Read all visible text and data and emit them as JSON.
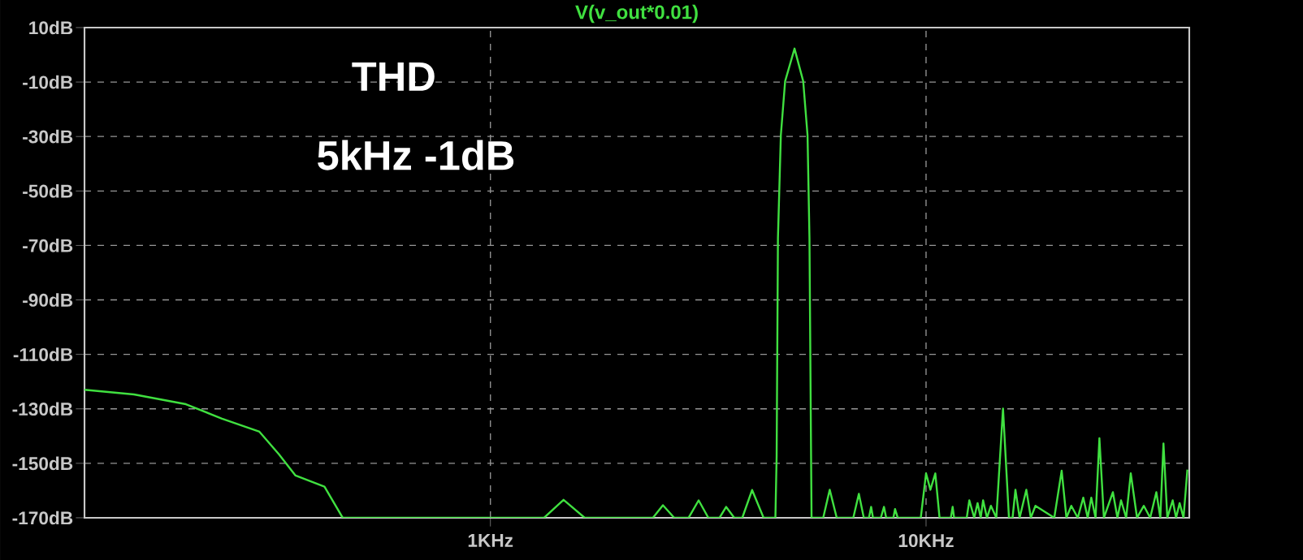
{
  "chart_data": {
    "type": "line",
    "title": "THD",
    "subtitle": "5kHz -1dB",
    "log": "x",
    "grid": true,
    "legend": "top",
    "xlim": [
      0.117,
      40.2
    ],
    "ylim": [
      -170,
      10
    ],
    "xticks": [
      {
        "value": 1,
        "label": "1KHz"
      },
      {
        "value": 10,
        "label": "10KHz"
      }
    ],
    "yticks": [
      {
        "value": 10,
        "label": "10dB"
      },
      {
        "value": -10,
        "label": "-10dB"
      },
      {
        "value": -30,
        "label": "-30dB"
      },
      {
        "value": -50,
        "label": "-50dB"
      },
      {
        "value": -70,
        "label": "-70dB"
      },
      {
        "value": -90,
        "label": "-90dB"
      },
      {
        "value": -110,
        "label": "-110dB"
      },
      {
        "value": -130,
        "label": "-130dB"
      },
      {
        "value": -150,
        "label": "-150dB"
      },
      {
        "value": -170,
        "label": "-170dB"
      }
    ],
    "series": [
      {
        "name": "V(v_out*0.01)",
        "color": "#40e040",
        "x": [
          0.117,
          0.152,
          0.2,
          0.242,
          0.295,
          0.327,
          0.357,
          0.416,
          0.458,
          1.328,
          1.472,
          1.646,
          2.361,
          2.489,
          2.642,
          2.851,
          3.006,
          3.165,
          3.357,
          3.476,
          3.629,
          3.787,
          3.988,
          4.237,
          4.51,
          4.54,
          4.571,
          4.642,
          4.748,
          4.99,
          5.224,
          5.345,
          5.4,
          5.446,
          5.46,
          5.807,
          6.01,
          6.237,
          6.808,
          7.012,
          7.197,
          7.396,
          7.481,
          7.555,
          7.874,
          8.006,
          8.1,
          8.414,
          8.488,
          8.61,
          9.726,
          10.0,
          10.233,
          10.502,
          10.74,
          11.4,
          11.51,
          11.6,
          12.4,
          12.57,
          12.9,
          13.13,
          13.35,
          13.52,
          13.8,
          14.09,
          14.5,
          15.02,
          15.5,
          15.8,
          16.04,
          16.4,
          16.99,
          17.4,
          17.83,
          19.7,
          20.48,
          21.0,
          21.55,
          22.3,
          22.96,
          23.5,
          23.95,
          24.5,
          25.0,
          25.6,
          26.85,
          27.5,
          28.03,
          28.8,
          29.51,
          30.5,
          31.62,
          32.7,
          33.78,
          34.5,
          35.08,
          35.8,
          36.83,
          37.5,
          38.21,
          39.0,
          39.81
        ],
        "values": [
          -123,
          -124.7,
          -128.3,
          -133.6,
          -138.4,
          -146.7,
          -154.5,
          -158.6,
          -170,
          -170,
          -163.4,
          -170,
          -170,
          -165.4,
          -170,
          -170,
          -163.6,
          -170,
          -170,
          -166,
          -170,
          -170,
          -159.8,
          -170,
          -170,
          -147.3,
          -67.3,
          -29.5,
          -9.7,
          2.3,
          -9.7,
          -29.5,
          -67.3,
          -147.3,
          -170,
          -170,
          -159.7,
          -170,
          -170,
          -161.2,
          -170,
          -170,
          -166,
          -170,
          -170,
          -166,
          -170,
          -170,
          -166.8,
          -170,
          -170,
          -153.7,
          -159.7,
          -153.7,
          -170,
          -170,
          -166,
          -170,
          -170,
          -163.6,
          -170,
          -164.6,
          -170,
          -163.6,
          -170,
          -165.6,
          -170,
          -129.9,
          -170,
          -170,
          -159.7,
          -170,
          -159.7,
          -170,
          -165.6,
          -170,
          -152.7,
          -170,
          -165.6,
          -170,
          -162.6,
          -170,
          -162.6,
          -170,
          -140.8,
          -170,
          -160.6,
          -170,
          -163.6,
          -170,
          -153.7,
          -170,
          -165.6,
          -170,
          -160.6,
          -170,
          -142.7,
          -170,
          -163.6,
          -170,
          -164.6,
          -170,
          -152.3
        ]
      }
    ]
  }
}
